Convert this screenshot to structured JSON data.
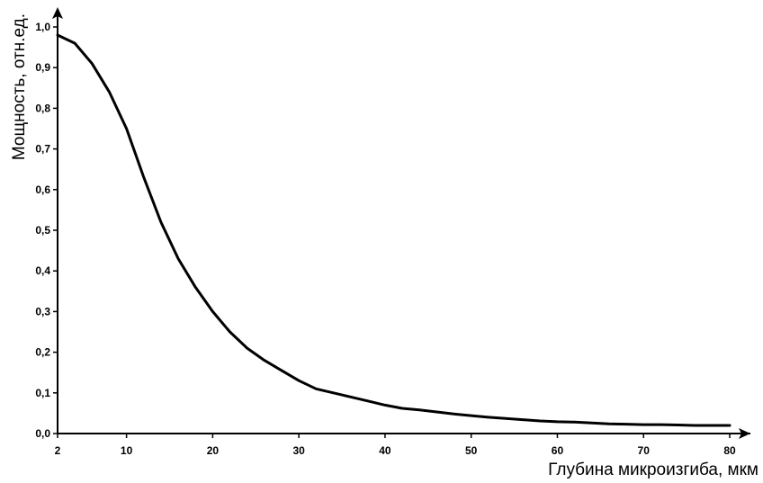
{
  "chart_data": {
    "type": "line",
    "title": "",
    "xlabel": "Глубина микроизгиба, мкм",
    "ylabel": "Мощность, отн.ед.",
    "xlim": [
      2,
      80
    ],
    "ylim": [
      0,
      1.0
    ],
    "x_ticks": [
      2,
      10,
      20,
      30,
      40,
      50,
      60,
      70,
      80
    ],
    "x_tick_labels": [
      "2",
      "10",
      "20",
      "30",
      "40",
      "50",
      "60",
      "70",
      "80"
    ],
    "y_ticks": [
      0,
      0.1,
      0.2,
      0.3,
      0.4,
      0.5,
      0.6,
      0.7,
      0.8,
      0.9,
      1.0
    ],
    "y_tick_labels": [
      "0,0",
      "0,1",
      "0,2",
      "0,3",
      "0,4",
      "0,5",
      "0,6",
      "0,7",
      "0,8",
      "0,9",
      "1,0"
    ],
    "grid": false,
    "legend": "none",
    "line_color": "#000000",
    "series": [
      {
        "x": [
          2,
          4,
          6,
          8,
          10,
          12,
          14,
          16,
          18,
          20,
          22,
          24,
          26,
          28,
          30,
          32,
          34,
          36,
          38,
          40,
          42,
          44,
          46,
          48,
          50,
          52,
          54,
          56,
          58,
          60,
          62,
          64,
          66,
          68,
          70,
          72,
          74,
          76,
          78,
          80
        ],
        "values": [
          0.98,
          0.96,
          0.91,
          0.84,
          0.75,
          0.63,
          0.52,
          0.43,
          0.36,
          0.3,
          0.25,
          0.21,
          0.18,
          0.155,
          0.13,
          0.11,
          0.1,
          0.09,
          0.08,
          0.07,
          0.062,
          0.058,
          0.053,
          0.048,
          0.044,
          0.04,
          0.037,
          0.034,
          0.031,
          0.029,
          0.028,
          0.026,
          0.024,
          0.023,
          0.022,
          0.022,
          0.021,
          0.02,
          0.02,
          0.02
        ]
      }
    ]
  }
}
